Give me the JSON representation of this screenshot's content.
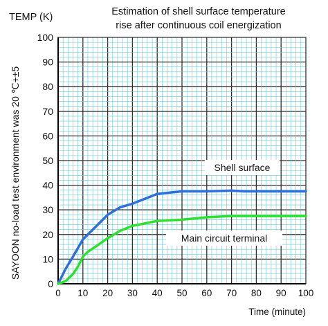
{
  "chart_data": {
    "type": "line",
    "title_lines": [
      "Estimation of shell surface temperature",
      "rise after continuous coil energization"
    ],
    "ylabel": "TEMP (K)",
    "xlabel": "Time (minute)",
    "side_note": "SAYOON no-load test environment was 20 ℃+±5",
    "xlim": [
      0,
      100
    ],
    "ylim": [
      0,
      100
    ],
    "x_ticks": [
      0,
      10,
      20,
      30,
      40,
      50,
      60,
      70,
      80,
      90,
      100
    ],
    "y_ticks": [
      0,
      10,
      20,
      30,
      40,
      50,
      60,
      70,
      80,
      90,
      100
    ],
    "grid": true,
    "series": [
      {
        "name": "Shell surface",
        "color": "#2f6fd8",
        "x": [
          0,
          3,
          6,
          10,
          15,
          20,
          25,
          30,
          35,
          40,
          45,
          50,
          60,
          70,
          75,
          80,
          90,
          100
        ],
        "y": [
          0,
          6,
          11,
          18,
          23,
          28,
          31,
          32.5,
          34.5,
          36.5,
          37,
          37.5,
          37.5,
          37.8,
          37.5,
          37.5,
          37.5,
          37.5
        ]
      },
      {
        "name": "Main circuit terminal",
        "color": "#2ee02e",
        "x": [
          0,
          3,
          6,
          8,
          10,
          12,
          15,
          20,
          25,
          30,
          35,
          40,
          50,
          60,
          70,
          80,
          90,
          100
        ],
        "y": [
          0,
          1,
          4,
          7,
          11,
          13,
          15,
          18.5,
          21.5,
          23.5,
          24.5,
          25.5,
          26,
          27,
          27.5,
          27.5,
          27.5,
          27.5
        ]
      }
    ]
  }
}
